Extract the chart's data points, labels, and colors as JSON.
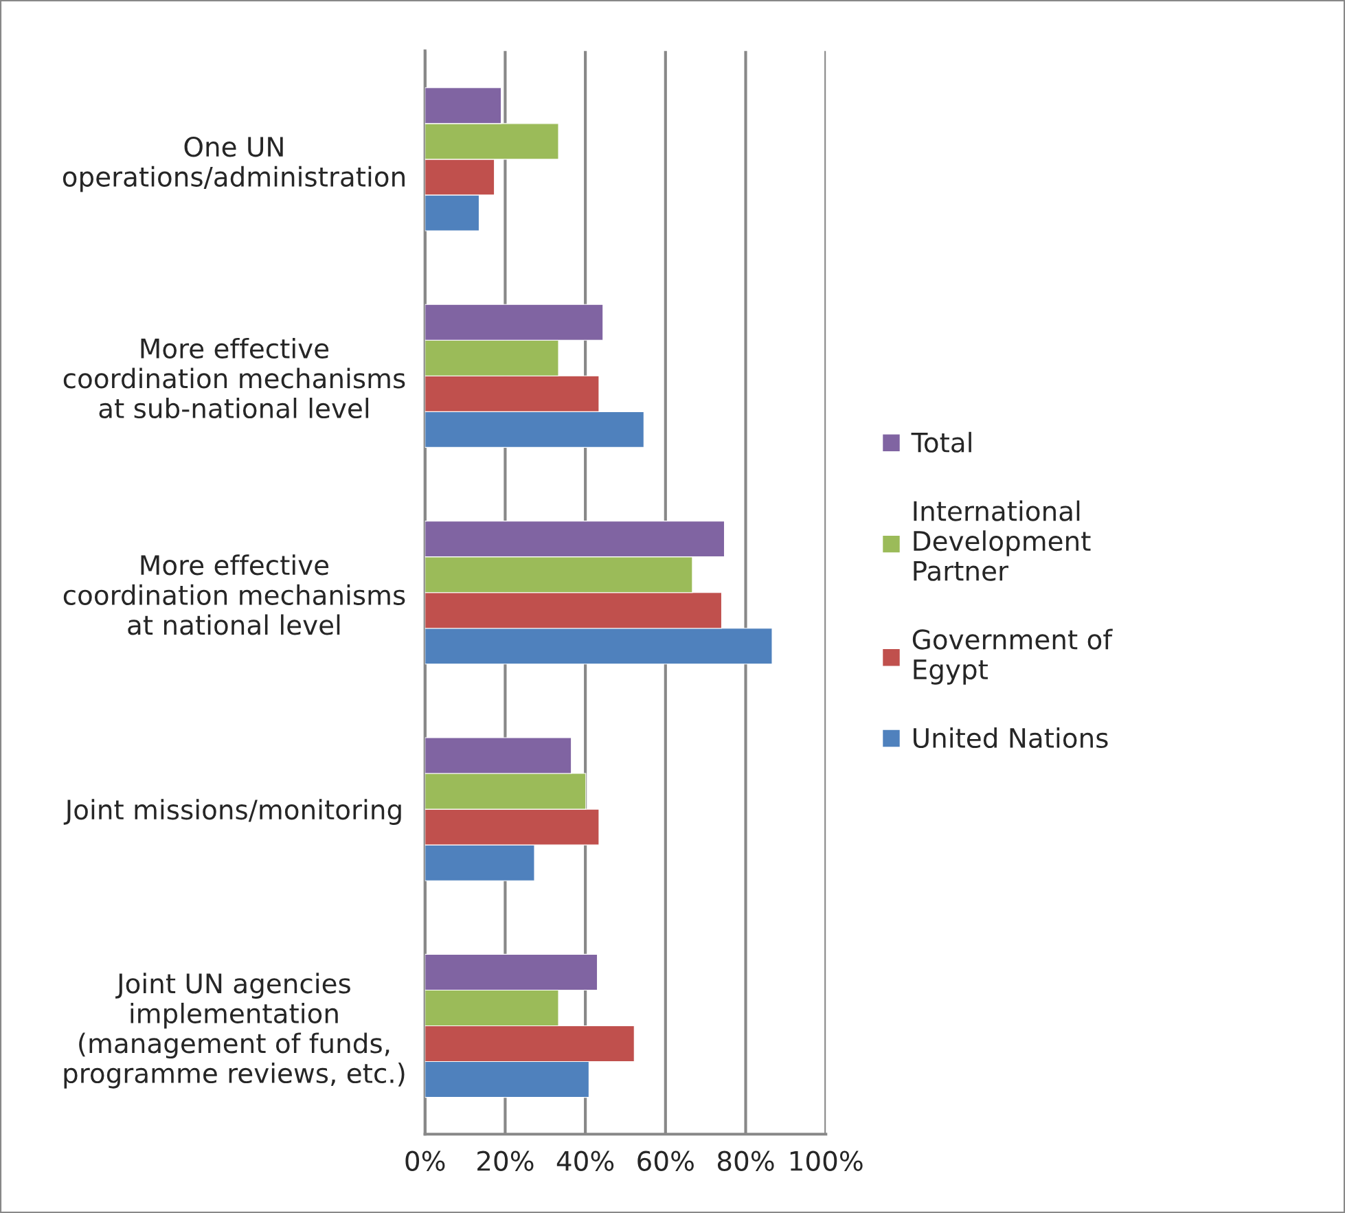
{
  "chart_data": {
    "type": "bar",
    "orientation": "horizontal",
    "categories": [
      "One UN\noperations/administration",
      "More effective\ncoordination mechanisms\nat sub-national level",
      "More effective\ncoordination mechanisms\nat national level",
      "Joint missions/monitoring",
      "Joint UN agencies\nimplementation\n(management of funds,\nprogramme reviews, etc.)"
    ],
    "series": [
      {
        "name": "United Nations",
        "color": "#4f81bd",
        "values": [
          13.5,
          54.6,
          86.6,
          27.3,
          40.9
        ]
      },
      {
        "name": "Government of\nEgypt",
        "color": "#c0504d",
        "values": [
          17.3,
          43.4,
          74,
          43.4,
          52.2
        ]
      },
      {
        "name": "International\nDevelopment\nPartner",
        "color": "#9bbb59",
        "values": [
          33.3,
          33.3,
          66.7,
          40.1,
          33.3
        ]
      },
      {
        "name": "Total",
        "color": "#8064a2",
        "values": [
          19,
          44.4,
          74.7,
          36.5,
          43
        ]
      }
    ],
    "xlim": [
      0,
      100
    ],
    "xticks": [
      {
        "value": 0,
        "label": "0%"
      },
      {
        "value": 20,
        "label": "20%"
      },
      {
        "value": 40,
        "label": "40%"
      },
      {
        "value": 60,
        "label": "60%"
      },
      {
        "value": 80,
        "label": "80%"
      },
      {
        "value": 100,
        "label": "100%"
      }
    ],
    "grid": "x",
    "legend": "right"
  }
}
